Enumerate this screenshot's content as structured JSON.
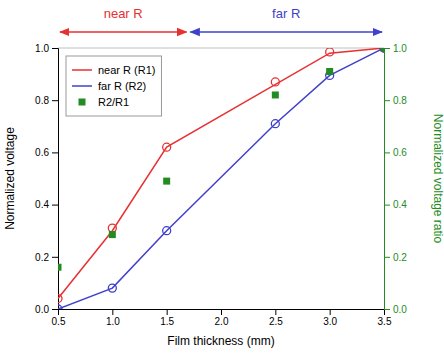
{
  "chart_data": {
    "type": "line",
    "xlabel": "Film thickness (mm)",
    "ylabel": "Normalized voltage",
    "y2label": "Normalized voltage ratio",
    "xlim": [
      0.5,
      3.5
    ],
    "ylim": [
      0.0,
      1.0
    ],
    "y2lim": [
      0.0,
      1.0
    ],
    "xticks": [
      0.5,
      {
        "value": 1.0,
        "label": "1.0"
      },
      1.5,
      {
        "value": 2.0,
        "label": "2.0"
      },
      2.5,
      {
        "value": 3.0,
        "label": "3.0"
      },
      3.5
    ],
    "yticks": [
      {
        "value": 0.0,
        "label": "0.0"
      },
      0.2,
      0.4,
      0.6,
      0.8,
      {
        "value": 1.0,
        "label": "1.0"
      }
    ],
    "y2ticks": [
      {
        "value": 0.0,
        "label": "0.0"
      },
      0.2,
      0.4,
      0.6,
      0.8,
      {
        "value": 1.0,
        "label": "1.0"
      }
    ],
    "grid": false,
    "legend": "upper left",
    "series": [
      {
        "name": "near R (R1)",
        "type": "line",
        "color": "#E83030",
        "line_style": "solid",
        "x": [
          0.5,
          1.0,
          1.5,
          3.0,
          3.5
        ],
        "values": [
          0.04,
          0.3,
          0.62,
          0.98,
          1.0
        ]
      },
      {
        "type": "scatter",
        "color": "#E83030",
        "marker": "circle",
        "x": [
          0.5,
          1.0,
          1.5,
          2.5,
          3.0,
          3.5
        ],
        "values": [
          0.04,
          0.31,
          0.62,
          0.87,
          0.985,
          1.0
        ]
      },
      {
        "name": "far R (R2)",
        "type": "line",
        "color": "#4040CC",
        "line_style": "solid",
        "x": [
          0.5,
          1.0,
          1.5,
          2.5,
          3.0,
          3.5
        ],
        "values": [
          0.0,
          0.08,
          0.3,
          0.71,
          0.895,
          1.0
        ]
      },
      {
        "type": "scatter",
        "color": "#4040CC",
        "marker": "circle",
        "x": [
          0.5,
          1.0,
          1.5,
          2.5,
          3.0,
          3.5
        ],
        "values": [
          0.0,
          0.08,
          0.3,
          0.71,
          0.895,
          1.0
        ]
      },
      {
        "name": "R2/R1",
        "type": "scatter",
        "color": "#228B22",
        "marker": "square",
        "axis": "y2",
        "x": [
          0.5,
          1.0,
          1.5,
          2.5,
          3.0,
          3.5
        ],
        "values": [
          0.16,
          0.285,
          0.49,
          0.82,
          0.91,
          1.0
        ]
      }
    ],
    "annotations": [
      {
        "text": "near R",
        "color": "#E83030"
      },
      {
        "text": "far R",
        "color": "#4040CC"
      }
    ]
  }
}
